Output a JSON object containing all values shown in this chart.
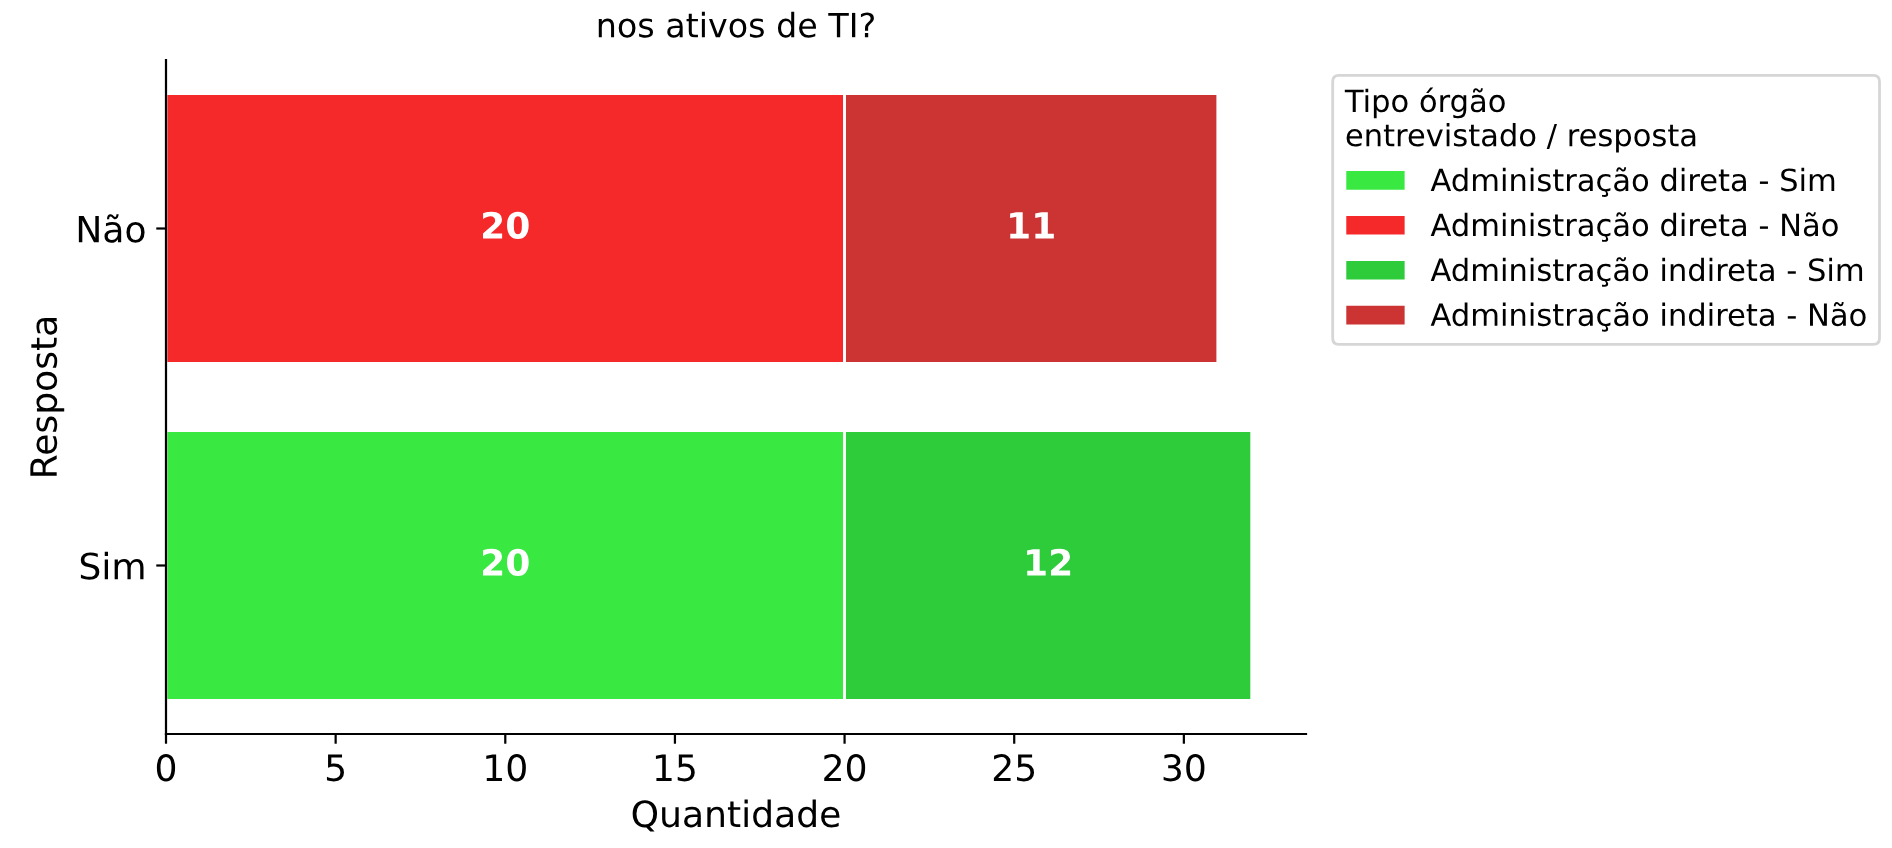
{
  "chart_data": {
    "type": "bar",
    "orientation": "horizontal",
    "stacked": true,
    "title": "nos ativos de TI?",
    "xlabel": "Quantidade",
    "ylabel": "Resposta",
    "legend_title": "Tipo órgão\nentrevistado / resposta",
    "categories": [
      "Não",
      "Sim"
    ],
    "series": [
      {
        "name": "Administração direta - Sim",
        "color": "#3ae842",
        "values": [
          null,
          20
        ]
      },
      {
        "name": "Administração direta - Não",
        "color": "#f5282a",
        "values": [
          20,
          null
        ]
      },
      {
        "name": "Administração indireta - Sim",
        "color": "#2ecc3a",
        "values": [
          null,
          12
        ]
      },
      {
        "name": "Administração indireta - Não",
        "color": "#cc3333",
        "values": [
          11,
          null
        ]
      }
    ],
    "xlim": [
      0,
      33.6
    ],
    "xticks": [
      0,
      5,
      10,
      15,
      20,
      25,
      30
    ],
    "grid": false,
    "legend": "right",
    "data_labels": true
  }
}
